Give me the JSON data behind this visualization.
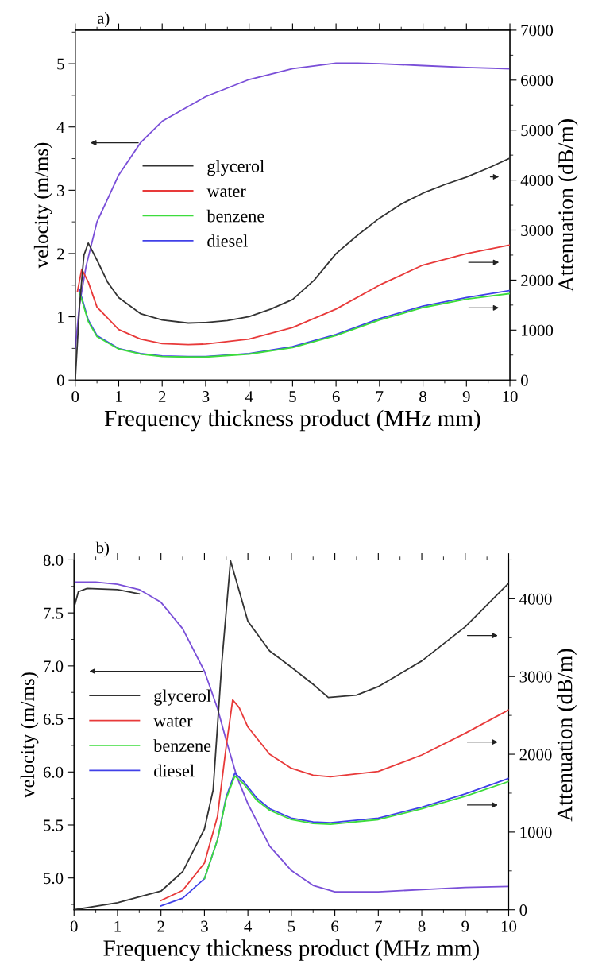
{
  "chart_data": [
    {
      "type": "line",
      "title": "a)",
      "xlabel": "Frequency thickness product (MHz mm)",
      "ylabel": "velocity (m/ms)",
      "y2label": "Attenuation (dB/m)",
      "xlim": [
        0,
        10
      ],
      "xticks": [
        0,
        1,
        2,
        3,
        4,
        5,
        6,
        7,
        8,
        9,
        10
      ],
      "ylim": [
        0,
        5.53
      ],
      "yticks": [
        0,
        1,
        2,
        3,
        4,
        5
      ],
      "y2lim": [
        0,
        7000
      ],
      "y2ticks": [
        0,
        1000,
        2000,
        3000,
        4000,
        5000,
        6000,
        7000
      ],
      "legend": "center left",
      "grid": false,
      "series": [
        {
          "color": "#7a4fd8",
          "axis": "y",
          "x": [
            0,
            0.1,
            0.25,
            0.5,
            1,
            1.5,
            2,
            3,
            4,
            5,
            6,
            6.5,
            7,
            8,
            9,
            10
          ],
          "values": [
            0.5,
            1.2,
            1.8,
            2.5,
            3.24,
            3.75,
            4.09,
            4.48,
            4.75,
            4.92,
            5.01,
            5.01,
            5.0,
            4.97,
            4.94,
            4.92
          ]
        },
        {
          "name": "glycerol",
          "color": "#333333",
          "axis": "y2",
          "x": [
            0,
            0.1,
            0.2,
            0.3,
            0.5,
            0.75,
            1,
            1.5,
            2,
            2.6,
            3,
            3.5,
            4,
            4.5,
            5,
            5.5,
            6,
            6.5,
            7,
            7.5,
            8,
            8.5,
            9,
            9.5,
            10
          ],
          "values": [
            0,
            1500,
            2500,
            2740,
            2400,
            1950,
            1650,
            1330,
            1200,
            1140,
            1150,
            1190,
            1270,
            1420,
            1610,
            2000,
            2530,
            2900,
            3240,
            3520,
            3740,
            3910,
            4060,
            4240,
            4440
          ]
        },
        {
          "name": "water",
          "color": "#e83a3a",
          "axis": "y2",
          "x": [
            0.05,
            0.15,
            0.3,
            0.5,
            1,
            1.5,
            2,
            2.6,
            3,
            4,
            5,
            6,
            7,
            8,
            9,
            10
          ],
          "values": [
            1770,
            2220,
            1960,
            1460,
            1010,
            820,
            730,
            710,
            720,
            820,
            1050,
            1420,
            1900,
            2300,
            2530,
            2700
          ]
        },
        {
          "name": "benzene",
          "color": "#3ddc3d",
          "axis": "y2",
          "x": [
            0.1,
            0.3,
            0.5,
            1,
            1.5,
            2,
            2.6,
            3,
            4,
            5,
            6,
            7,
            8,
            9,
            10
          ],
          "values": [
            1750,
            1170,
            870,
            620,
            520,
            470,
            460,
            460,
            520,
            650,
            890,
            1200,
            1450,
            1620,
            1730
          ]
        },
        {
          "name": "diesel",
          "color": "#4040e8",
          "axis": "y2",
          "x": [
            0.1,
            0.3,
            0.5,
            1,
            1.5,
            2,
            2.6,
            3,
            4,
            5,
            6,
            7,
            8,
            9,
            10
          ],
          "values": [
            1800,
            1200,
            890,
            630,
            530,
            480,
            470,
            470,
            530,
            670,
            910,
            1230,
            1480,
            1650,
            1790
          ]
        }
      ]
    },
    {
      "type": "line",
      "title": "b)",
      "xlabel": "Frequency thickness product (MHz mm)",
      "ylabel": "velocity (m/ms)",
      "y2label": "Attenuation (dB/m)",
      "xlim": [
        0,
        10
      ],
      "xticks": [
        0,
        1,
        2,
        3,
        4,
        5,
        6,
        7,
        8,
        9,
        10
      ],
      "ylim": [
        4.7,
        8.0
      ],
      "yticks": [
        {
          "value": 5.0,
          "label": "5.0"
        },
        {
          "value": 5.5,
          "label": "5.5"
        },
        {
          "value": 6.0,
          "label": "6.0"
        },
        {
          "value": 6.5,
          "label": "6.5"
        },
        {
          "value": 7.0,
          "label": "7.0"
        },
        {
          "value": 7.5,
          "label": "7.5"
        },
        {
          "value": 8.0,
          "label": "8.0"
        }
      ],
      "y2lim": [
        0,
        4500
      ],
      "y2ticks": [
        0,
        1000,
        2000,
        3000,
        4000
      ],
      "legend": "left",
      "grid": false,
      "series": [
        {
          "color": "#7a4fd8",
          "axis": "y",
          "x": [
            0,
            0.5,
            1,
            1.5,
            2,
            2.5,
            3,
            3.3,
            3.5,
            3.75,
            4,
            4.5,
            5,
            5.5,
            6,
            7,
            8,
            9,
            10
          ],
          "values": [
            7.79,
            7.79,
            7.77,
            7.72,
            7.6,
            7.35,
            6.95,
            6.6,
            6.3,
            5.95,
            5.7,
            5.3,
            5.07,
            4.93,
            4.87,
            4.87,
            4.89,
            4.91,
            4.92
          ]
        },
        {
          "color": "#333333",
          "axis": "y",
          "x": [
            0,
            0.1,
            0.3,
            1,
            1.5
          ],
          "values": [
            7.55,
            7.7,
            7.73,
            7.72,
            7.68
          ]
        },
        {
          "name": "glycerol",
          "color": "#333333",
          "axis": "y2",
          "x": [
            0,
            1,
            2,
            2.5,
            3,
            3.2,
            3.4,
            3.6,
            3.8,
            4,
            4.5,
            5,
            5.5,
            5.85,
            6.5,
            7,
            8,
            9,
            10
          ],
          "values": [
            0,
            90,
            240,
            490,
            1040,
            1540,
            3180,
            4490,
            4100,
            3710,
            3330,
            3120,
            2900,
            2730,
            2760,
            2870,
            3200,
            3640,
            4200
          ]
        },
        {
          "name": "water",
          "color": "#e83a3a",
          "axis": "y2",
          "x": [
            2,
            2.5,
            3,
            3.3,
            3.5,
            3.65,
            3.8,
            4,
            4.5,
            5,
            5.5,
            5.9,
            7,
            8,
            9,
            10
          ],
          "values": [
            120,
            250,
            600,
            1200,
            2100,
            2700,
            2600,
            2350,
            2000,
            1820,
            1730,
            1710,
            1780,
            1990,
            2270,
            2570
          ]
        },
        {
          "name": "benzene",
          "color": "#3ddc3d",
          "axis": "y2",
          "x": [
            3,
            3.3,
            3.5,
            3.7,
            3.9,
            4.2,
            4.5,
            5,
            5.5,
            5.9,
            7,
            8,
            9,
            10
          ],
          "values": [
            400,
            900,
            1430,
            1720,
            1620,
            1410,
            1280,
            1160,
            1110,
            1100,
            1160,
            1300,
            1460,
            1650
          ]
        },
        {
          "name": "diesel",
          "color": "#4040e8",
          "axis": "y2",
          "x": [
            2,
            2.5,
            3,
            3.3,
            3.5,
            3.7,
            3.9,
            4.2,
            4.5,
            5,
            5.5,
            5.9,
            7,
            8,
            9,
            10
          ],
          "values": [
            50,
            150,
            400,
            900,
            1450,
            1760,
            1650,
            1440,
            1300,
            1180,
            1130,
            1120,
            1180,
            1320,
            1490,
            1690
          ]
        }
      ]
    }
  ]
}
